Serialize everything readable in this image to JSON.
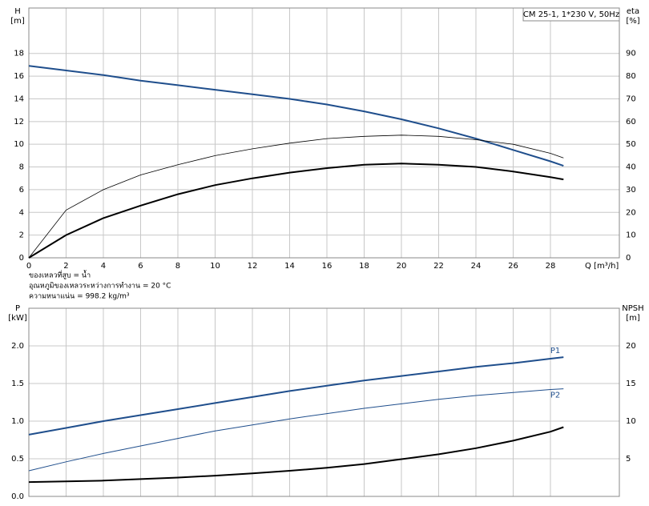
{
  "chart_data": [
    {
      "type": "line",
      "title": "CM 25-1, 1*230 V, 50Hz",
      "ylabel": "H",
      "yunit": "[m]",
      "y2label": "eta",
      "y2unit": "[%]",
      "xlabel": "Q [m³/h]",
      "annotations": [
        "ของเหลวที่สูบ = น้ำ",
        "อุณหภูมิของเหลวระหว่างการทำงาน = 20 °C",
        "ความหนาแน่น = 998.2 kg/m³"
      ],
      "x": [
        0,
        2,
        4,
        6,
        8,
        10,
        12,
        14,
        16,
        18,
        20,
        22,
        24,
        26,
        28,
        28.7
      ],
      "xlim": [
        0,
        31.7
      ],
      "xticks": [
        0,
        2,
        4,
        6,
        8,
        10,
        12,
        14,
        16,
        18,
        20,
        22,
        24,
        26,
        28
      ],
      "ylim": [
        0,
        22
      ],
      "yticks": [
        0,
        2,
        4,
        6,
        8,
        10,
        12,
        14,
        16,
        18
      ],
      "y2lim": [
        0,
        110
      ],
      "y2ticks": [
        0,
        10,
        20,
        30,
        40,
        50,
        60,
        70,
        80,
        90
      ],
      "grid": true,
      "series": [
        {
          "color": "#1f4e8c",
          "values": [
            16.9,
            16.5,
            16.1,
            15.6,
            15.2,
            14.8,
            14.4,
            14.0,
            13.5,
            12.9,
            12.2,
            11.4,
            10.5,
            9.5,
            8.5,
            8.1
          ]
        },
        {
          "color": "#000000",
          "axis": "y2",
          "values": [
            0,
            21,
            30,
            36.5,
            41,
            45,
            48,
            50.5,
            52.5,
            53.5,
            54,
            53.5,
            52,
            50,
            46,
            44
          ]
        },
        {
          "color": "#000000",
          "axis": "y2",
          "values": [
            0,
            10,
            17.5,
            23,
            28,
            32,
            35,
            37.5,
            39.5,
            41,
            41.5,
            41,
            40,
            38,
            35.5,
            34.5
          ]
        }
      ]
    },
    {
      "type": "line",
      "ylabel": "P",
      "yunit": "[kW]",
      "y2label": "NPSH",
      "y2unit": "[m]",
      "x": [
        0,
        2,
        4,
        6,
        8,
        10,
        12,
        14,
        16,
        18,
        20,
        22,
        24,
        26,
        28,
        28.7
      ],
      "xlim": [
        0,
        31.7
      ],
      "ylim": [
        0,
        2.5
      ],
      "yticks": [
        {
          "value": 0,
          "label": "0.0"
        },
        {
          "value": 0.5,
          "label": "0.5"
        },
        {
          "value": 1,
          "label": "1.0"
        },
        {
          "value": 1.5,
          "label": "1.5"
        },
        {
          "value": 2,
          "label": "2.0"
        }
      ],
      "y2lim": [
        0,
        25
      ],
      "y2ticks": [
        5,
        10,
        15,
        20
      ],
      "grid": true,
      "series": [
        {
          "name": "P1",
          "color": "#1f4e8c",
          "values": [
            0.82,
            0.91,
            1.0,
            1.08,
            1.16,
            1.24,
            1.32,
            1.4,
            1.47,
            1.54,
            1.6,
            1.66,
            1.72,
            1.77,
            1.83,
            1.85
          ]
        },
        {
          "name": "P2",
          "color": "#1f4e8c",
          "values": [
            0.34,
            0.46,
            0.57,
            0.67,
            0.77,
            0.87,
            0.95,
            1.03,
            1.1,
            1.17,
            1.23,
            1.29,
            1.34,
            1.38,
            1.42,
            1.43
          ]
        },
        {
          "color": "#000000",
          "axis": "y2",
          "values": [
            1.9,
            2.0,
            2.1,
            2.3,
            2.5,
            2.75,
            3.05,
            3.4,
            3.8,
            4.3,
            4.95,
            5.6,
            6.4,
            7.4,
            8.6,
            9.2
          ]
        }
      ]
    }
  ]
}
